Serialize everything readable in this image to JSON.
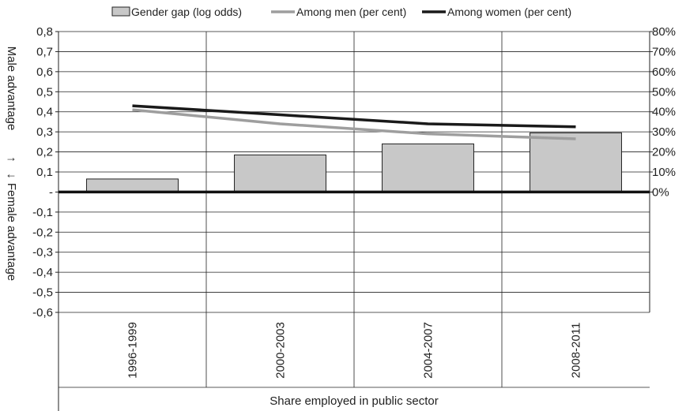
{
  "chart_data": {
    "type": "bar",
    "categories": [
      "1996-1999",
      "2000-2003",
      "2004-2007",
      "2008-2011"
    ],
    "series": [
      {
        "name": "Gender gap (log odds)",
        "type": "bar",
        "axis": "left",
        "values": [
          0.065,
          0.185,
          0.24,
          0.295
        ],
        "color": "#c8c8c8"
      },
      {
        "name": "Among men (per cent)",
        "type": "line",
        "axis": "right",
        "values": [
          41,
          34,
          29,
          26.5
        ],
        "color": "#9e9e9e"
      },
      {
        "name": "Among women (per cent)",
        "type": "line",
        "axis": "right",
        "values": [
          43,
          38.5,
          34,
          32.5
        ],
        "color": "#1a1a1a"
      }
    ],
    "left_axis": {
      "ylim": [
        -0.6,
        0.8
      ],
      "ticks": [
        0.8,
        0.7,
        0.6,
        0.5,
        0.4,
        0.3,
        0.2,
        0.1,
        0,
        -0.1,
        -0.2,
        -0.3,
        -0.4,
        -0.5,
        -0.6
      ],
      "tick_labels": [
        "0,8",
        "0,7",
        "0,6",
        "0,5",
        "0,4",
        "0,3",
        "0,2",
        "0,1",
        "-",
        "-0,1",
        "-0,2",
        "-0,3",
        "-0,4",
        "-0,5",
        "-0,6"
      ]
    },
    "right_axis": {
      "ylim": [
        0,
        80
      ],
      "ticks": [
        80,
        70,
        60,
        50,
        40,
        30,
        20,
        10,
        0
      ],
      "tick_labels": [
        "80%",
        "70%",
        "60%",
        "50%",
        "40%",
        "30%",
        "20%",
        "10%",
        "0%"
      ]
    },
    "ylabel_upper": "Male advantage",
    "ylabel_upper_arrow": "↑",
    "ylabel_lower": "Female advantage",
    "ylabel_lower_arrow": "↓",
    "xlabel": "Share employed in public sector",
    "legend_position": "top",
    "grid": true
  }
}
